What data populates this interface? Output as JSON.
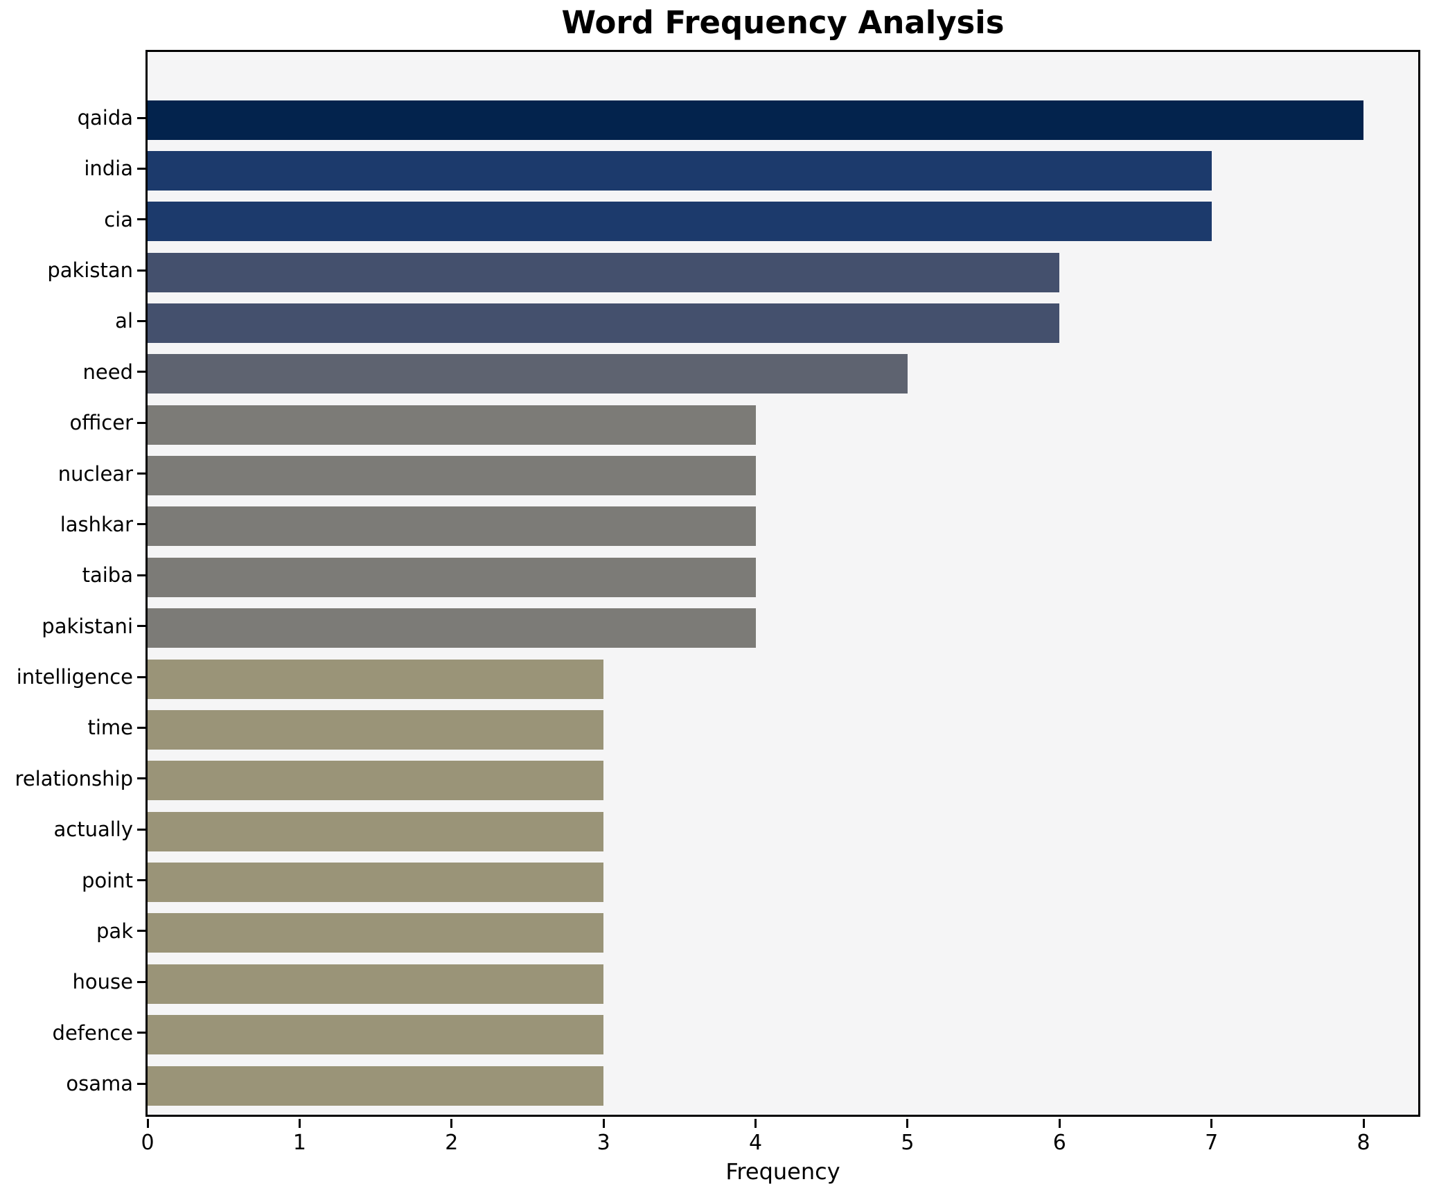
{
  "chart_data": {
    "type": "bar",
    "orientation": "horizontal",
    "title": "Word Frequency Analysis",
    "xlabel": "Frequency",
    "ylabel": "",
    "categories": [
      "qaida",
      "india",
      "cia",
      "pakistan",
      "al",
      "need",
      "officer",
      "nuclear",
      "lashkar",
      "taiba",
      "pakistani",
      "intelligence",
      "time",
      "relationship",
      "actually",
      "point",
      "pak",
      "house",
      "defence",
      "osama"
    ],
    "values": [
      8,
      7,
      7,
      6,
      6,
      5,
      4,
      4,
      4,
      4,
      4,
      3,
      3,
      3,
      3,
      3,
      3,
      3,
      3,
      3
    ],
    "bar_colors": [
      "#03234d",
      "#1c3a6c",
      "#1c3a6c",
      "#44506d",
      "#44506d",
      "#5e6370",
      "#7c7b77",
      "#7c7b77",
      "#7c7b77",
      "#7c7b77",
      "#7c7b77",
      "#9a9478",
      "#9a9478",
      "#9a9478",
      "#9a9478",
      "#9a9478",
      "#9a9478",
      "#9a9478",
      "#9a9478",
      "#9a9478"
    ],
    "xticks": [
      "0",
      "1",
      "2",
      "3",
      "4",
      "5",
      "6",
      "7",
      "8"
    ],
    "xlim": [
      0,
      8.36
    ],
    "grid": false,
    "legend": null,
    "plot_bg": "#f5f5f6",
    "fig_bg": "#ffffff",
    "axis_color": "#000000"
  }
}
